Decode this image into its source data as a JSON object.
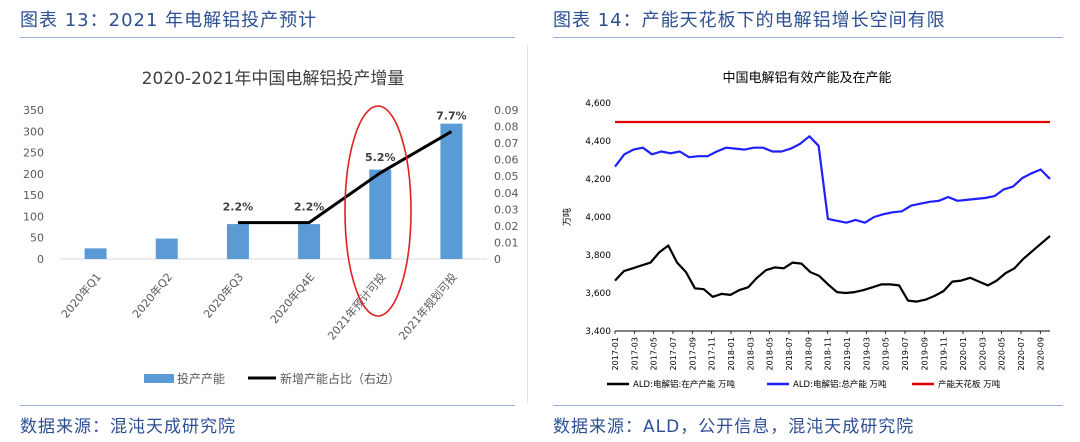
{
  "left_panel": {
    "title": "图表 13：2021 年电解铝投产预计",
    "source": "数据来源：混沌天成研究院"
  },
  "right_panel": {
    "title": "图表 14：产能天花板下的电解铝增长空间有限",
    "source": "数据来源：ALD，公开信息，混沌天成研究院"
  },
  "chart_data": [
    {
      "type": "bar",
      "title": "2020-2021年中国电解铝投产增量",
      "categories": [
        "2020年Q1",
        "2020年Q2",
        "2020年Q3",
        "2020年Q4E",
        "2021年预计可投",
        "2021年规划可投"
      ],
      "series": [
        {
          "name": "投产产能",
          "type": "bar",
          "axis": "left",
          "values": [
            25,
            48,
            82,
            82,
            210,
            318
          ]
        },
        {
          "name": "新增产能占比（右边）",
          "type": "line",
          "axis": "right",
          "values": [
            null,
            null,
            0.022,
            0.022,
            0.052,
            0.077
          ],
          "labels": [
            "",
            "",
            "2.2%",
            "2.2%",
            "5.2%",
            "7.7%"
          ]
        }
      ],
      "yaxis_left": {
        "min": 0,
        "max": 350,
        "ticks": [
          "0",
          "50",
          "100",
          "150",
          "200",
          "250",
          "300",
          "350"
        ]
      },
      "yaxis_right": {
        "min": 0,
        "max": 0.09,
        "ticks": [
          "0",
          "0.01",
          "0.02",
          "0.03",
          "0.04",
          "0.05",
          "0.06",
          "0.07",
          "0.08",
          "0.09"
        ]
      },
      "legend_position": "bottom",
      "colors": {
        "bar": "#5b9bd5",
        "line": "#000000",
        "highlight": "#e02020"
      },
      "highlight_categories": [
        "2021年预计可投"
      ]
    },
    {
      "type": "line",
      "title": "中国电解铝有效产能及在产能",
      "ylabel": "万吨",
      "ylim": [
        3400,
        4600
      ],
      "yticks": [
        "3,400",
        "3,600",
        "3,800",
        "4,000",
        "4,200",
        "4,400",
        "4,600"
      ],
      "x_tick_labels": [
        "2017-01",
        "2017-03",
        "2017-05",
        "2017-07",
        "2017-09",
        "2017-11",
        "2018-01",
        "2018-03",
        "2018-05",
        "2018-07",
        "2018-09",
        "2018-11",
        "2019-01",
        "2019-03",
        "2019-05",
        "2019-07",
        "2019-09",
        "2019-11",
        "2020-01",
        "2020-03",
        "2020-05",
        "2020-07",
        "2020-09"
      ],
      "x_start": "2017-01",
      "x_end": "2020-10",
      "series": [
        {
          "name": "ALD:电解铝:在产产能 万吨",
          "color": "#000000",
          "values": [
            3665,
            3715,
            3730,
            3745,
            3760,
            3815,
            3850,
            3760,
            3710,
            3625,
            3620,
            3580,
            3595,
            3590,
            3615,
            3630,
            3680,
            3720,
            3735,
            3730,
            3760,
            3755,
            3710,
            3690,
            3645,
            3605,
            3600,
            3605,
            3615,
            3630,
            3645,
            3645,
            3640,
            3560,
            3555,
            3565,
            3585,
            3610,
            3660,
            3665,
            3680,
            3660,
            3640,
            3665,
            3705,
            3730,
            3780,
            3820,
            3860,
            3900
          ]
        },
        {
          "name": "ALD:电解铝:总产能 万吨",
          "color": "#1f1fff",
          "values": [
            4265,
            4330,
            4355,
            4365,
            4330,
            4345,
            4335,
            4345,
            4315,
            4320,
            4320,
            4345,
            4365,
            4360,
            4355,
            4365,
            4365,
            4345,
            4345,
            4360,
            4385,
            4425,
            4375,
            3990,
            3980,
            3970,
            3985,
            3970,
            4000,
            4015,
            4025,
            4030,
            4060,
            4070,
            4080,
            4085,
            4105,
            4085,
            4090,
            4095,
            4100,
            4110,
            4145,
            4160,
            4205,
            4230,
            4250,
            4200
          ]
        },
        {
          "name": "产能天花板 万吨",
          "color": "#e00000",
          "values": [
            4500,
            4500
          ]
        }
      ],
      "legend_position": "bottom"
    }
  ]
}
